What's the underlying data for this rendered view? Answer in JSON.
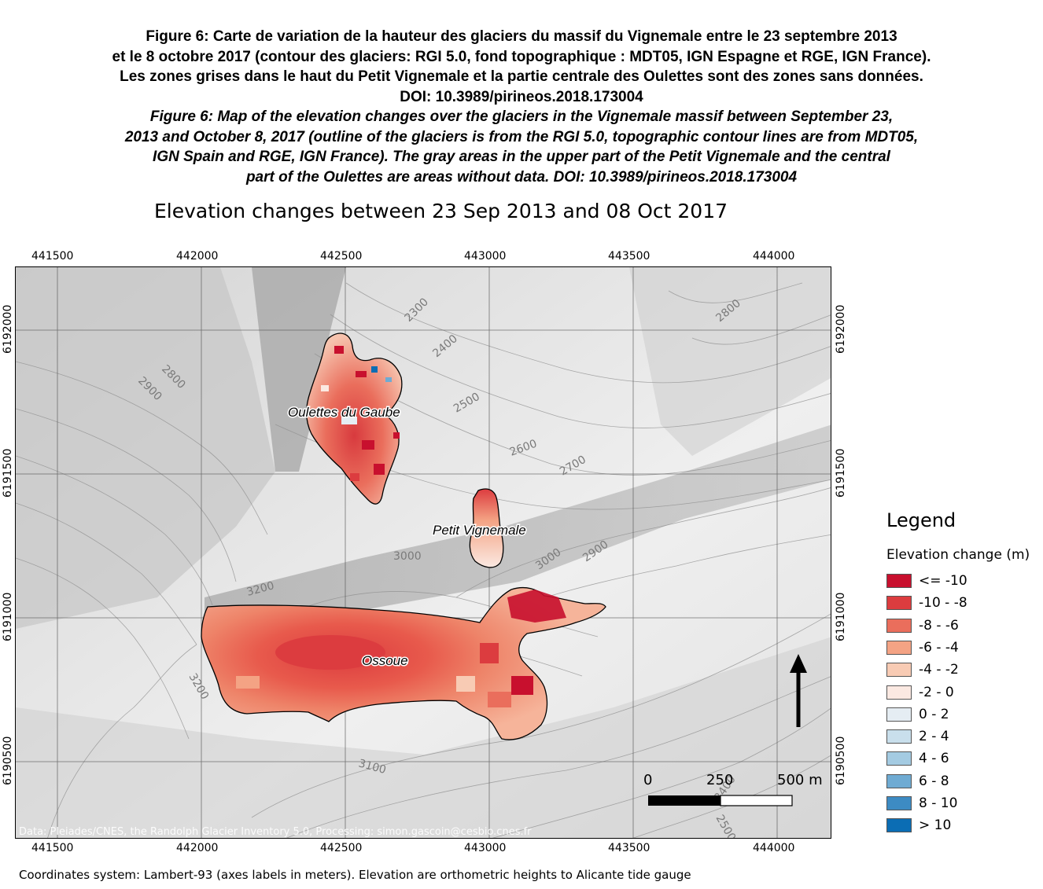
{
  "caption_fr": [
    "Figure 6: Carte de variation de la hauteur des glaciers du massif du Vignemale entre le 23 septembre 2013",
    "et le 8 octobre 2017 (contour des glaciers: RGI 5.0, fond topographique : MDT05, IGN Espagne et RGE, IGN France).",
    "Les zones grises dans le haut du Petit Vignemale et la partie centrale des Oulettes sont des zones sans données.",
    "DOI: 10.3989/pirineos.2018.173004"
  ],
  "caption_en": [
    "Figure 6: Map of the elevation changes over the glaciers in the Vignemale massif between September 23,",
    "2013 and October 8, 2017 (outline of the glaciers is from the RGI 5.0, topographic contour lines are from MDT05,",
    "IGN Spain and RGE, IGN France). The gray areas in the upper part of the Petit Vignemale and the central",
    "part of the Oulettes are areas without data. DOI: 10.3989/pirineos.2018.173004"
  ],
  "map_title": "Elevation changes between 23 Sep 2013 and 08 Oct 2017",
  "x_ticks": [
    "441500",
    "442000",
    "442500",
    "443000",
    "443500",
    "444000"
  ],
  "y_ticks": [
    "6192000",
    "6191500",
    "6191000",
    "6190500"
  ],
  "glaciers": [
    "Oulettes du Gaube",
    "Petit Vignemale",
    "Ossoue"
  ],
  "contour_labels": [
    "2300",
    "2400",
    "2500",
    "2600",
    "2700",
    "2800",
    "2900",
    "2800",
    "2900",
    "3000",
    "3000",
    "2900",
    "3200",
    "3200",
    "3100",
    "2400",
    "2500"
  ],
  "scalebar": {
    "labels": [
      "0",
      "250",
      "500 m"
    ]
  },
  "attribution": "Data: Pleiades/CNES, the Randolph Glacier Inventory 5.0, Processing: simon.gascoin@cesbio.cnes.fr",
  "legend": {
    "title": "Legend",
    "subtitle": "Elevation change (m)",
    "classes": [
      {
        "label": "<= -10",
        "color": "#c8102e"
      },
      {
        "label": "-10 - -8",
        "color": "#dc3c3f"
      },
      {
        "label": "-8 - -6",
        "color": "#ea6e5c"
      },
      {
        "label": "-6 - -4",
        "color": "#f4a384"
      },
      {
        "label": "-4 - -2",
        "color": "#f8cbb4"
      },
      {
        "label": "-2 - 0",
        "color": "#fbe9e2"
      },
      {
        "label": "0 - 2",
        "color": "#e5edf3"
      },
      {
        "label": "2 - 4",
        "color": "#c9dfec"
      },
      {
        "label": "4 - 6",
        "color": "#a4cbe2"
      },
      {
        "label": "6 - 8",
        "color": "#6fabd3"
      },
      {
        "label": "8 - 10",
        "color": "#3d8bc3"
      },
      {
        "label": "> 10",
        "color": "#0b6db4"
      }
    ]
  },
  "footer": "Coordinates system: Lambert-93 (axes labels in meters). Elevation are orthometric heights to Alicante tide gauge"
}
